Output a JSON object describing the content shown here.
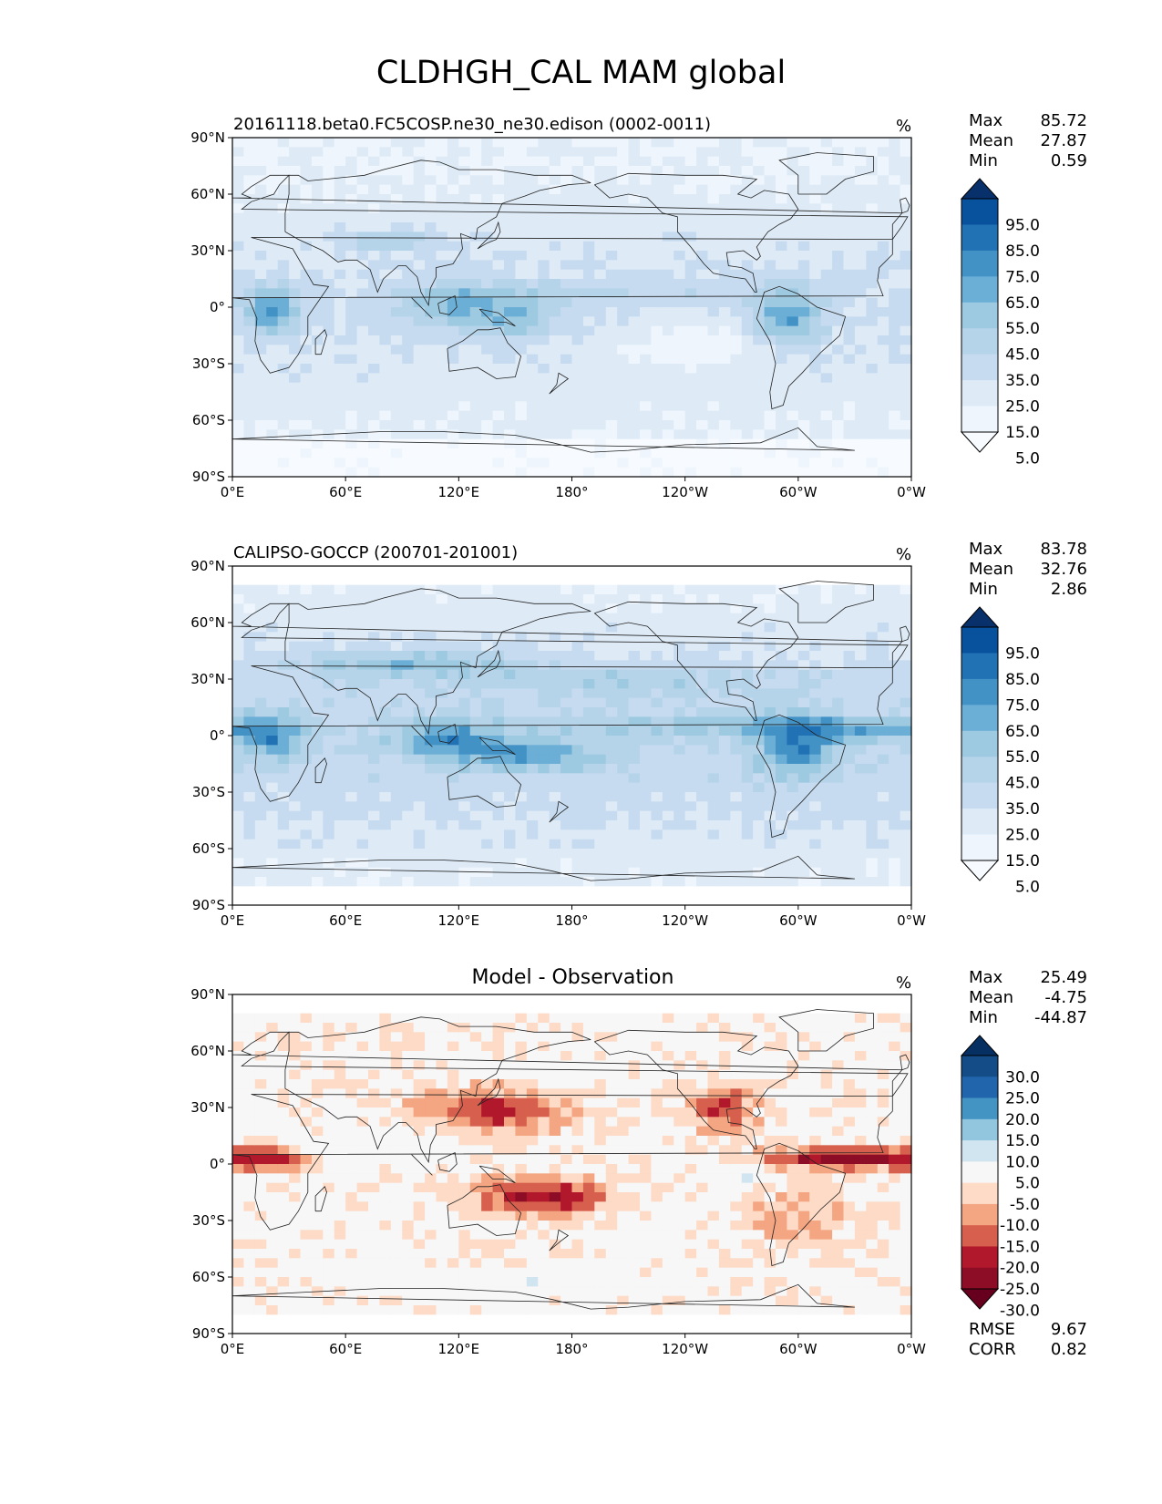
{
  "figure_title": "CLDHGH_CAL MAM global",
  "lat_ticks": [
    "90°N",
    "60°N",
    "30°N",
    "0°",
    "30°S",
    "60°S",
    "90°S"
  ],
  "lon_ticks": [
    "0°E",
    "60°E",
    "120°E",
    "180°",
    "120°W",
    "60°W",
    "0°W"
  ],
  "panels": [
    {
      "title": "20161118.beta0.FC5COSP.ne30_ne30.edison (0002-0011)",
      "units": "%",
      "max_label": "Max",
      "max": "85.72",
      "mean_label": "Mean",
      "mean": "27.87",
      "min_label": "Min",
      "min": "0.59",
      "colorbar_labels": [
        "95.0",
        "85.0",
        "75.0",
        "65.0",
        "55.0",
        "45.0",
        "35.0",
        "25.0",
        "15.0",
        "5.0"
      ],
      "colors": [
        "#08306b",
        "#08519c",
        "#2171b5",
        "#4292c6",
        "#6baed6",
        "#9ecae1",
        "#b6d4e9",
        "#c6dbef",
        "#deebf7",
        "#eef5fc",
        "#f7fbff"
      ]
    },
    {
      "title": "CALIPSO-GOCCP (200701-201001)",
      "units": "%",
      "max_label": "Max",
      "max": "83.78",
      "mean_label": "Mean",
      "mean": "32.76",
      "min_label": "Min",
      "min": "2.86",
      "colorbar_labels": [
        "95.0",
        "85.0",
        "75.0",
        "65.0",
        "55.0",
        "45.0",
        "35.0",
        "25.0",
        "15.0",
        "5.0"
      ],
      "colors": [
        "#08306b",
        "#08519c",
        "#2171b5",
        "#4292c6",
        "#6baed6",
        "#9ecae1",
        "#b6d4e9",
        "#c6dbef",
        "#deebf7",
        "#eef5fc",
        "#f7fbff"
      ]
    },
    {
      "title": "Model - Observation",
      "units": "%",
      "max_label": "Max",
      "max": "25.49",
      "mean_label": "Mean",
      "mean": "-4.75",
      "min_label": "Min",
      "min": "-44.87",
      "colorbar_labels": [
        "30.0",
        "25.0",
        "20.0",
        "15.0",
        "10.0",
        "5.0",
        "-5.0",
        "-10.0",
        "-15.0",
        "-20.0",
        "-25.0",
        "-30.0"
      ],
      "colors": [
        "#053061",
        "#134c87",
        "#2166ac",
        "#4393c3",
        "#92c5de",
        "#d1e5f0",
        "#f7f7f7",
        "#fddbc7",
        "#f4a582",
        "#d6604d",
        "#b2182b",
        "#8c0d25",
        "#67001f"
      ],
      "rmse_label": "RMSE",
      "rmse": "9.67",
      "corr_label": "CORR",
      "corr": "0.82"
    }
  ]
}
